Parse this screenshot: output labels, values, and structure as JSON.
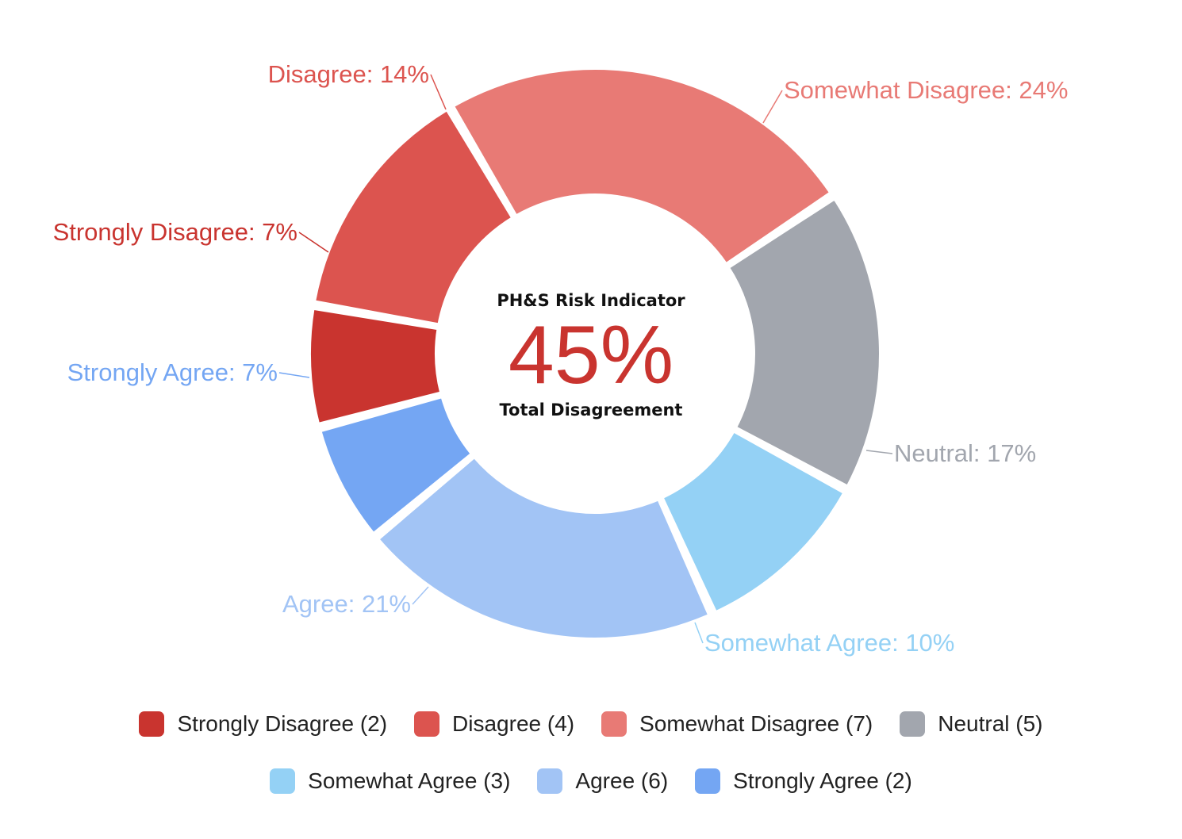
{
  "chart_data": {
    "type": "pie",
    "variant": "donut",
    "center": {
      "title": "PH&S Risk Indicator",
      "value": "45%",
      "subtitle": "Total Disagreement"
    },
    "slices": [
      {
        "name": "Strongly Disagree",
        "count": 2,
        "percent": 7,
        "label": "Strongly Disagree: 7%",
        "legend": "Strongly Disagree (2)",
        "color": "#c9342f"
      },
      {
        "name": "Disagree",
        "count": 4,
        "percent": 14,
        "label": "Disagree: 14%",
        "legend": "Disagree (4)",
        "color": "#dc544f"
      },
      {
        "name": "Somewhat Disagree",
        "count": 7,
        "percent": 24,
        "label": "Somewhat Disagree: 24%",
        "legend": "Somewhat Disagree (7)",
        "color": "#e87a75"
      },
      {
        "name": "Neutral",
        "count": 5,
        "percent": 17,
        "label": "Neutral: 17%",
        "legend": "Neutral (5)",
        "color": "#a2a6ae"
      },
      {
        "name": "Somewhat Agree",
        "count": 3,
        "percent": 10,
        "label": "Somewhat Agree: 10%",
        "legend": "Somewhat Agree (3)",
        "color": "#94d1f5"
      },
      {
        "name": "Agree",
        "count": 6,
        "percent": 21,
        "label": "Agree: 21%",
        "legend": "Agree (6)",
        "color": "#a2c4f5"
      },
      {
        "name": "Strongly Agree",
        "count": 2,
        "percent": 7,
        "label": "Strongly Agree: 7%",
        "legend": "Strongly Agree (2)",
        "color": "#74a6f3"
      }
    ],
    "legend_placement": "bottom"
  }
}
